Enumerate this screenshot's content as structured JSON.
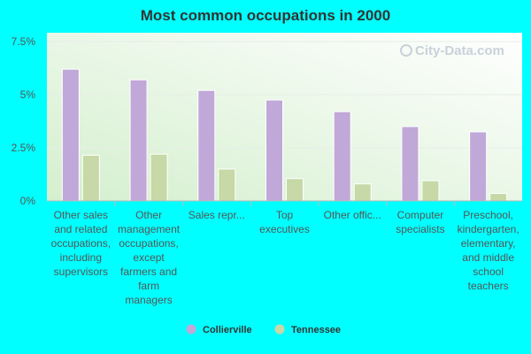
{
  "chart_data": {
    "type": "bar",
    "title": "Most common occupations in 2000",
    "categories": [
      [
        "Other sales",
        "and related",
        "occupations,",
        "including",
        "supervisors"
      ],
      [
        "Other",
        "management",
        "occupations,",
        "except",
        "farmers and",
        "farm",
        "managers"
      ],
      [
        "Sales repr..."
      ],
      [
        "Top",
        "executives"
      ],
      [
        "Other offic..."
      ],
      [
        "Computer",
        "specialists"
      ],
      [
        "Preschool,",
        "kindergarten,",
        "elementary,",
        "and middle",
        "school",
        "teachers"
      ]
    ],
    "series": [
      {
        "name": "Collierville",
        "color": "#c0a8d8",
        "values": [
          6.2,
          5.7,
          5.2,
          4.75,
          4.2,
          3.5,
          3.25
        ]
      },
      {
        "name": "Tennessee",
        "color": "#c6d9a6",
        "values": [
          2.15,
          2.2,
          1.5,
          1.05,
          0.8,
          0.95,
          0.35
        ]
      }
    ],
    "yticks": [
      "0%",
      "2.5%",
      "5%",
      "7.5%"
    ],
    "ytick_values": [
      0,
      2.5,
      5,
      7.5
    ],
    "ylim": [
      0,
      7.5
    ],
    "grid": true,
    "legend_position": "bottom-center"
  },
  "watermark": "City-Data.com",
  "colors": {
    "page_background": "#00ffff",
    "plot_gradient_start": "#ffffff",
    "plot_gradient_end": "#d4efce"
  }
}
